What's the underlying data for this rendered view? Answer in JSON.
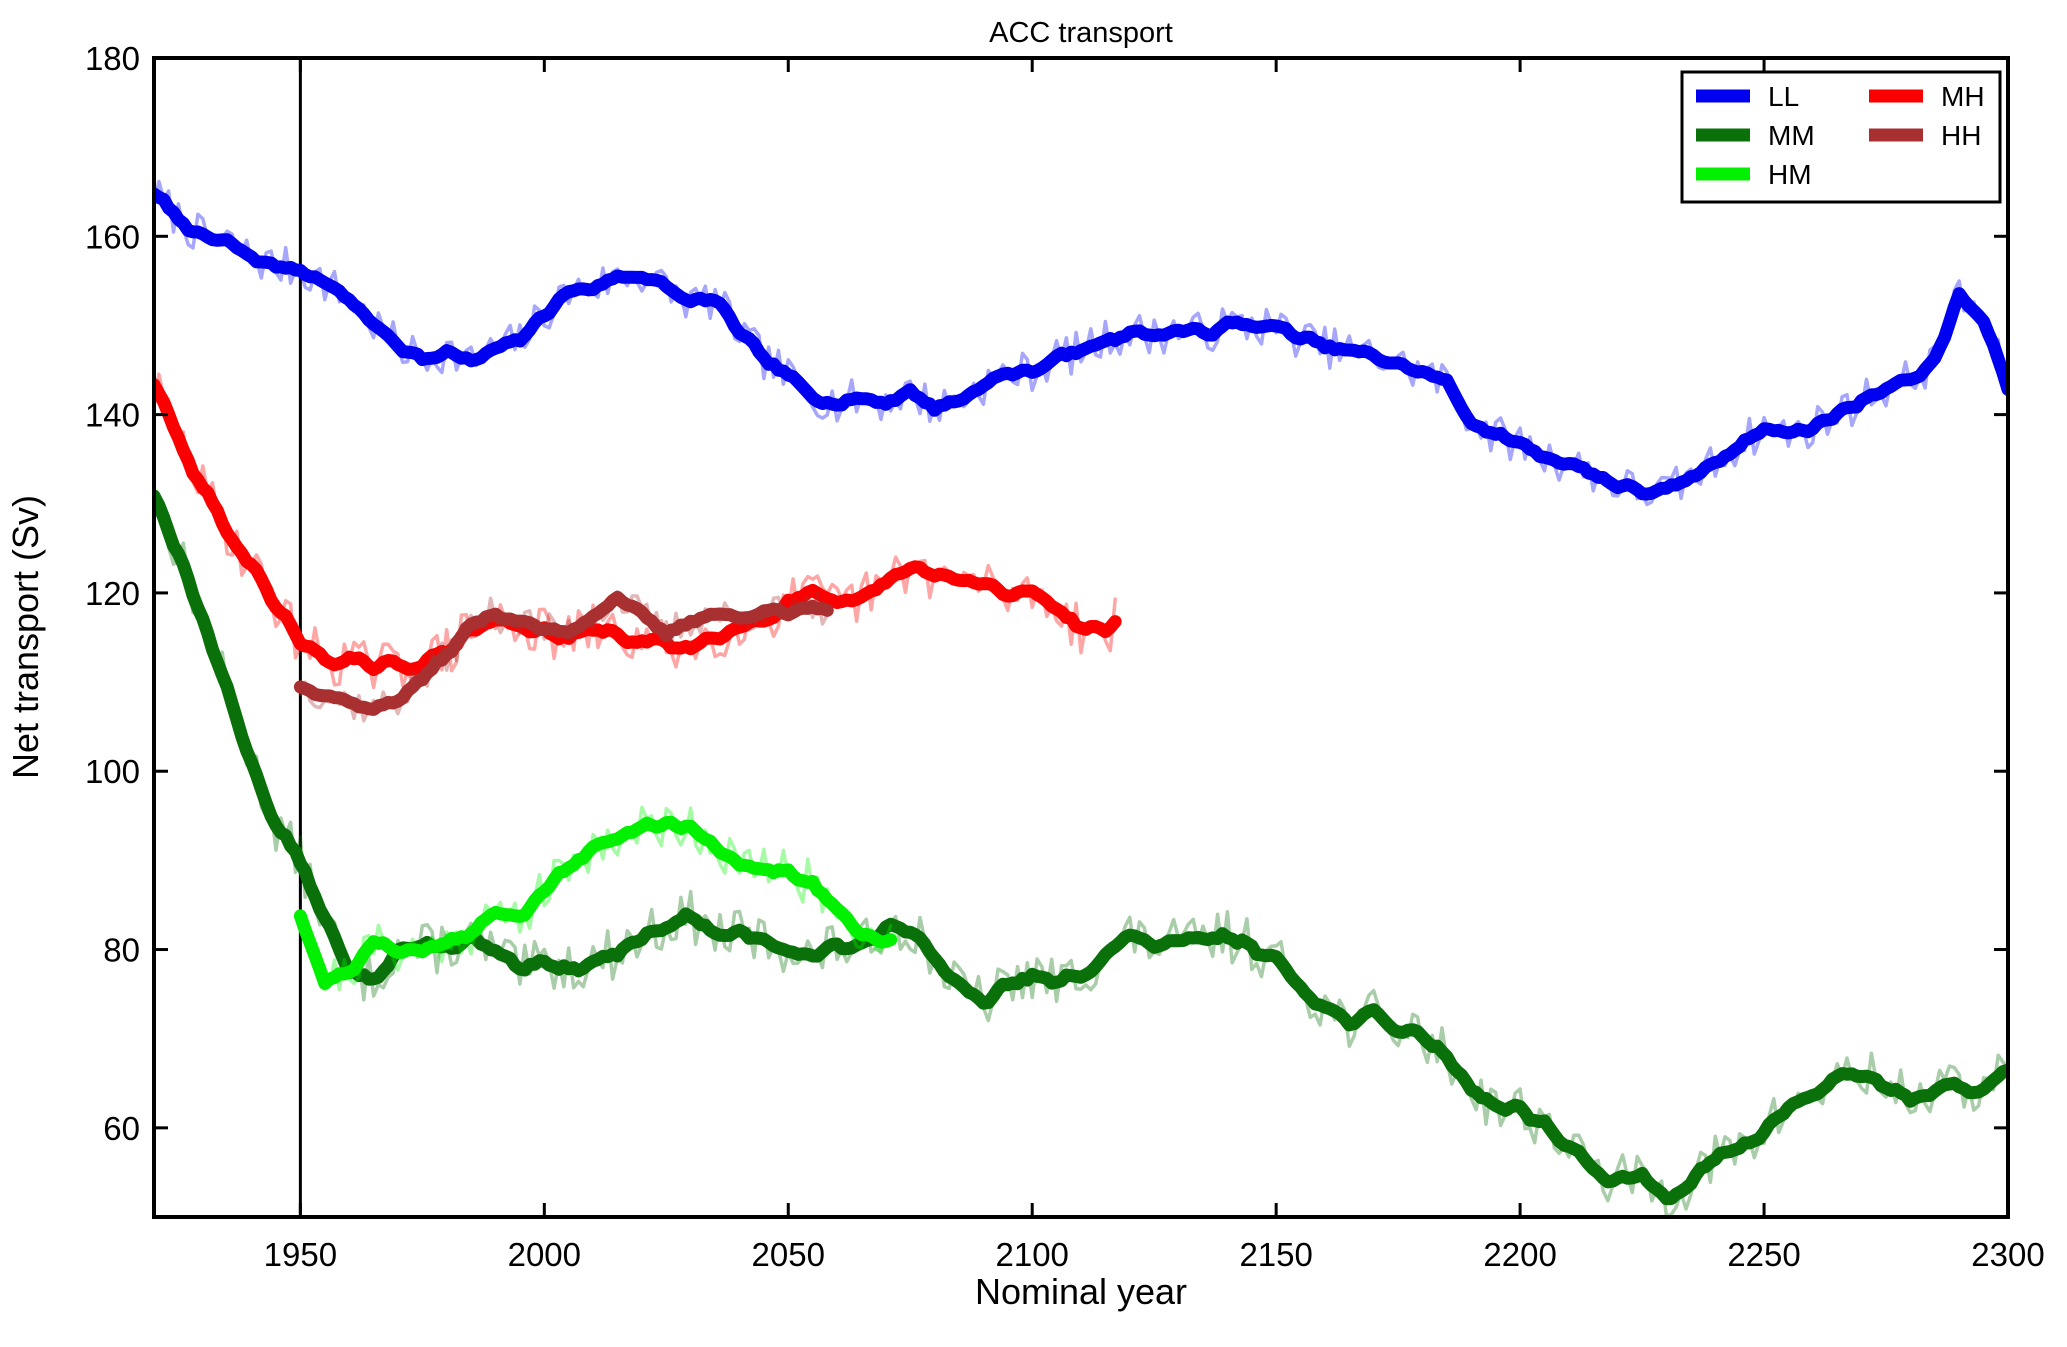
{
  "chart_data": {
    "type": "line",
    "title": "ACC transport",
    "xlabel": "Nominal year",
    "ylabel": "Net transport (Sv)",
    "background": "#ffffff",
    "frame_color": "#000000",
    "grid": false,
    "xlim": [
      1920,
      2300
    ],
    "ylim": [
      50,
      180
    ],
    "xticks": [
      1950,
      2000,
      2050,
      2100,
      2150,
      2200,
      2250,
      2300
    ],
    "yticks": [
      60,
      80,
      100,
      120,
      140,
      160,
      180
    ],
    "vline_x": 1950,
    "vline_color": "#000000",
    "legend": {
      "position": "upper right",
      "columns": 2,
      "labels": [
        "LL",
        "MM",
        "HM",
        "MH",
        "HH"
      ]
    },
    "line_styles": {
      "smoothed_width": 13,
      "raw_width": 3.5,
      "raw_opacity": 0.35
    },
    "series": [
      {
        "name": "LL",
        "color": "#0000F0",
        "start": 1920,
        "step": 5,
        "end": 2300,
        "noise_amp": 2.3,
        "seed": 7,
        "values": [
          164.8,
          162.0,
          159.8,
          159.3,
          157.6,
          156.6,
          156.4,
          154.8,
          153.0,
          150.2,
          147.6,
          146.3,
          147.2,
          145.8,
          147.3,
          148.3,
          151.3,
          153.8,
          154.3,
          155.4,
          155.7,
          154.2,
          152.6,
          152.9,
          149.2,
          146.2,
          144.2,
          142.3,
          141.2,
          141.9,
          141.4,
          142.6,
          140.8,
          141.6,
          143.4,
          144.6,
          144.9,
          146.4,
          147.1,
          148.4,
          149.3,
          148.9,
          149.5,
          149.1,
          150.0,
          150.1,
          149.8,
          148.6,
          147.6,
          147.1,
          146.6,
          145.6,
          144.7,
          143.6,
          139.3,
          137.6,
          136.8,
          135.3,
          134.6,
          133.4,
          132.1,
          131.4,
          131.3,
          132.9,
          134.6,
          136.8,
          138.4,
          137.9,
          138.6,
          140.1,
          141.6,
          143.1,
          143.9,
          146.0,
          153.3,
          150.5,
          143.2
        ]
      },
      {
        "name": "MM",
        "color": "#0A700A",
        "start": 1920,
        "step": 5,
        "end": 2300,
        "noise_amp": 2.9,
        "seed": 13,
        "values": [
          131.2,
          124.5,
          117.0,
          109.0,
          101.0,
          94.0,
          89.8,
          83.5,
          77.2,
          76.8,
          80.2,
          80.0,
          80.4,
          81.0,
          79.6,
          77.4,
          78.4,
          78.1,
          78.6,
          79.8,
          81.4,
          82.9,
          83.7,
          81.7,
          81.6,
          80.9,
          80.3,
          79.0,
          80.6,
          80.0,
          82.9,
          82.6,
          79.2,
          75.6,
          74.0,
          75.9,
          77.1,
          76.1,
          77.4,
          79.4,
          81.4,
          80.6,
          80.5,
          81.1,
          81.5,
          80.6,
          78.6,
          76.1,
          73.6,
          71.9,
          72.6,
          71.1,
          70.4,
          68.0,
          64.6,
          62.4,
          62.2,
          60.4,
          57.9,
          55.1,
          54.0,
          54.4,
          52.4,
          54.1,
          56.4,
          57.6,
          59.6,
          62.4,
          63.7,
          65.6,
          66.2,
          64.6,
          63.4,
          64.1,
          64.4,
          64.3,
          66.2
        ]
      },
      {
        "name": "HM",
        "color": "#00F000",
        "start": 1950,
        "step": 5,
        "end": 2071,
        "noise_amp": 2.6,
        "seed": 21,
        "values": [
          84.2,
          76.4,
          77.6,
          80.6,
          80.1,
          79.7,
          81.0,
          82.1,
          83.9,
          83.8,
          86.6,
          89.1,
          91.6,
          92.7,
          93.6,
          94.2,
          93.9,
          91.9,
          89.2,
          88.9,
          88.7,
          87.3,
          84.6,
          82.1,
          80.8,
          80.7
        ]
      },
      {
        "name": "MH",
        "color": "#FA0000",
        "start": 1920,
        "step": 5,
        "end": 2117,
        "noise_amp": 2.9,
        "seed": 29,
        "values": [
          143.4,
          137.2,
          131.6,
          127.1,
          123.0,
          118.7,
          114.6,
          112.6,
          112.4,
          111.5,
          111.9,
          112.1,
          113.4,
          115.8,
          116.9,
          116.6,
          115.4,
          114.9,
          115.9,
          115.3,
          114.4,
          114.4,
          113.8,
          115.4,
          116.5,
          117.0,
          118.9,
          119.6,
          118.4,
          119.4,
          120.9,
          122.9,
          122.1,
          121.3,
          120.9,
          119.8,
          120.2,
          118.6,
          116.1,
          116.0,
          116.5
        ]
      },
      {
        "name": "HH",
        "color": "#A83030",
        "start": 1950,
        "step": 5,
        "end": 2058,
        "noise_amp": 2.0,
        "seed": 37,
        "values": [
          109.6,
          108.8,
          107.8,
          106.9,
          108.1,
          110.4,
          113.0,
          116.4,
          117.7,
          116.9,
          115.8,
          115.6,
          117.6,
          119.6,
          117.4,
          115.3,
          117.0,
          117.7,
          117.1,
          118.3,
          117.4,
          118.3,
          118.4
        ]
      }
    ]
  }
}
